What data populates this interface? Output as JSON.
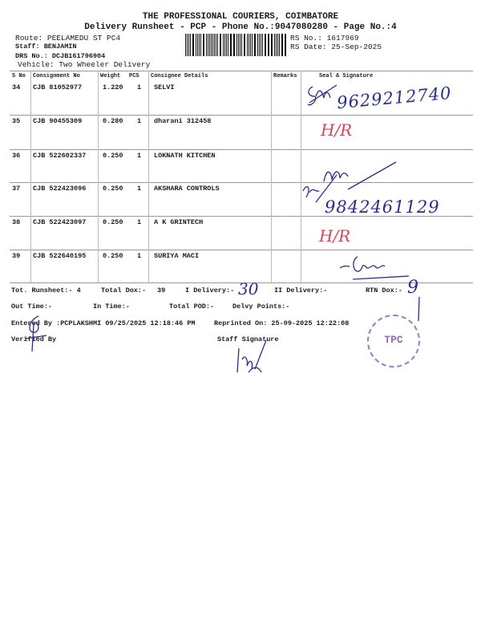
{
  "header": {
    "company": "THE PROFESSIONAL COURIERS, COIMBATORE",
    "subtitle": "Delivery Runsheet - PCP - Phone No.:9047080280 - Page No.:4",
    "route": "Route: PEELAMEDU ST PC4",
    "staff": "Staff: BENJAMIN",
    "drs_no": "DRS No.: DCJB161796904",
    "vehicle": "Vehicle: Two Wheeler Delivery",
    "rs_no": "RS No.: 1617969",
    "rs_date": "RS Date: 25-Sep-2025"
  },
  "table": {
    "columns": [
      "S No",
      "Consignment No",
      "Weight",
      "PCS",
      "Consignee Details",
      "Remarks",
      "Seal & Signature"
    ],
    "rows": [
      {
        "sno": "34",
        "consignment": "CJB 81052977",
        "weight": "1.220",
        "pcs": "1",
        "consignee": "SELVI"
      },
      {
        "sno": "35",
        "consignment": "CJB 90455309",
        "weight": "0.280",
        "pcs": "1",
        "consignee": "dharani 312458"
      },
      {
        "sno": "36",
        "consignment": "CJB 522602337",
        "weight": "0.250",
        "pcs": "1",
        "consignee": "LOKNATH KITCHEN"
      },
      {
        "sno": "37",
        "consignment": "CJB 522423096",
        "weight": "0.250",
        "pcs": "1",
        "consignee": "AKSHARA CONTROLS"
      },
      {
        "sno": "38",
        "consignment": "CJB 522423097",
        "weight": "0.250",
        "pcs": "1",
        "consignee": "A K GRINTECH"
      },
      {
        "sno": "39",
        "consignment": "CJB 522640195",
        "weight": "0.250",
        "pcs": "1",
        "consignee": "SURIYA MACI"
      }
    ]
  },
  "handwriting": {
    "phone_1": "9629212740",
    "hr_1": "H/R",
    "phone_2": "9842461129",
    "hr_2": "H/R",
    "i_delivery": "30",
    "rtn_dox": "9"
  },
  "totals": {
    "tot_runsheet": "Tot. Runsheet:- 4",
    "total_dox": "Total Dox:-",
    "total_dox_value": "39",
    "i_delivery": "I Delivery:-",
    "ii_delivery": "II Delivery:-",
    "rtn_dox": "RTN Dox:-",
    "out_time": "Out Time:-",
    "in_time": "In Time:-",
    "total_pod": "Total POD:-",
    "delvy_points": "Delvy Points:-"
  },
  "footer": {
    "entered_by": "Entered By :PCPLAKSHMI 09/25/2025 12:18:46 PM",
    "reprinted_on": "Reprinted On: 25-09-2025 12:22:08",
    "verified_by": "Verified By",
    "staff_signature": "Staff Signature"
  },
  "stamp": {
    "text": "TPC",
    "color": "#8a6cc0"
  },
  "colors": {
    "ink_blue": "#2a2f8a",
    "ink_red": "#d0465a"
  }
}
